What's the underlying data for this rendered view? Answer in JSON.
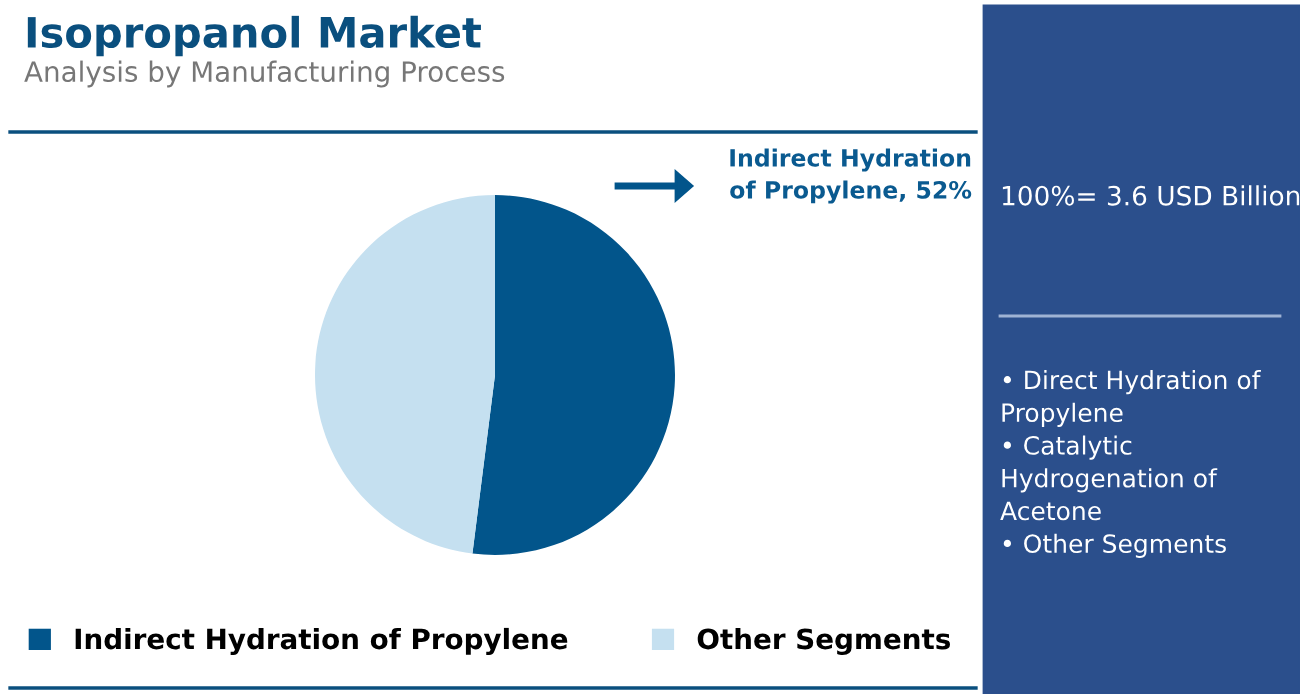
{
  "chart_data": {
    "type": "pie",
    "title": "Isopropanol Market",
    "subtitle": "Analysis by Manufacturing Process",
    "categories": [
      "Indirect Hydration of Propylene",
      "Other Segments"
    ],
    "values": [
      52,
      48
    ],
    "colors": [
      "#02558b",
      "#c5e0f0"
    ],
    "value_labels": [
      "Indirect Hydration\nof Propylene, 52%",
      null
    ],
    "legend": "bottom",
    "annotations": [
      "100%= 3.6 USD Billion",
      "• Direct Hydration of\nPropylene\n• Catalytic\nHydrogenation of\nAcetone\n• Other Segments"
    ]
  }
}
